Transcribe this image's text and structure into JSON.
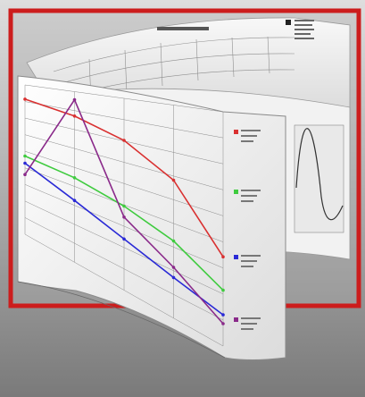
{
  "image": {
    "subject": "",
    "frame_color": "#cc1d1d",
    "back_sheet_title": "",
    "back_sheet_legend_top": ""
  },
  "front_sheet": {
    "subtitle_text": "",
    "legend": [
      {
        "label": "",
        "color": "#d93030"
      },
      {
        "label": "",
        "color": "#3fcb3f"
      },
      {
        "label": "",
        "color": "#2a2ad6"
      },
      {
        "label": "",
        "color": "#8a2a8a"
      }
    ]
  },
  "chart_data": {
    "type": "line",
    "title": "",
    "xlabel": "",
    "ylabel": "",
    "x": [
      0,
      1,
      2,
      3,
      4
    ],
    "series": [
      {
        "color": "#d93030",
        "values": [
          95,
          90,
          82,
          68,
          40
        ]
      },
      {
        "color": "#3fcb3f",
        "values": [
          55,
          52,
          46,
          38,
          25
        ]
      },
      {
        "color": "#2a2ad6",
        "values": [
          50,
          38,
          28,
          20,
          14
        ]
      },
      {
        "color": "#8a2a8a",
        "values": [
          42,
          100,
          40,
          25,
          10
        ]
      }
    ],
    "grid": true
  }
}
